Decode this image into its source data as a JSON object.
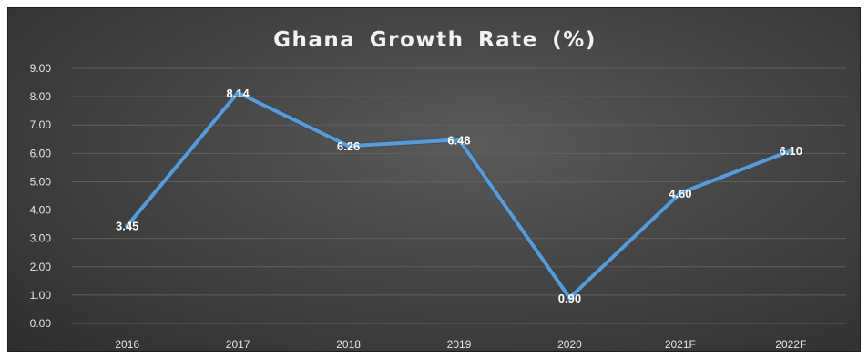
{
  "chart_data": {
    "type": "line",
    "title": "Ghana Growth Rate (%)",
    "categories": [
      "2016",
      "2017",
      "2018",
      "2019",
      "2020",
      "2021F",
      "2022F"
    ],
    "series": [
      {
        "values": [
          3.45,
          8.14,
          6.26,
          6.48,
          0.9,
          4.6,
          6.1
        ]
      }
    ],
    "data_labels": [
      "3.45",
      "8.14",
      "6.26",
      "6.48",
      "0.90",
      "4.60",
      "6.10"
    ],
    "ylim": [
      0,
      9
    ],
    "yticks": [
      "0.00",
      "1.00",
      "2.00",
      "3.00",
      "4.00",
      "5.00",
      "6.00",
      "7.00",
      "8.00",
      "9.00"
    ],
    "xlabel": "",
    "ylabel": "",
    "grid": true,
    "legend": "none",
    "colors": {
      "line": "#5b9bd5",
      "background": "#404040",
      "grid": "#5f5f5f",
      "text": "#f2f2f2"
    }
  }
}
